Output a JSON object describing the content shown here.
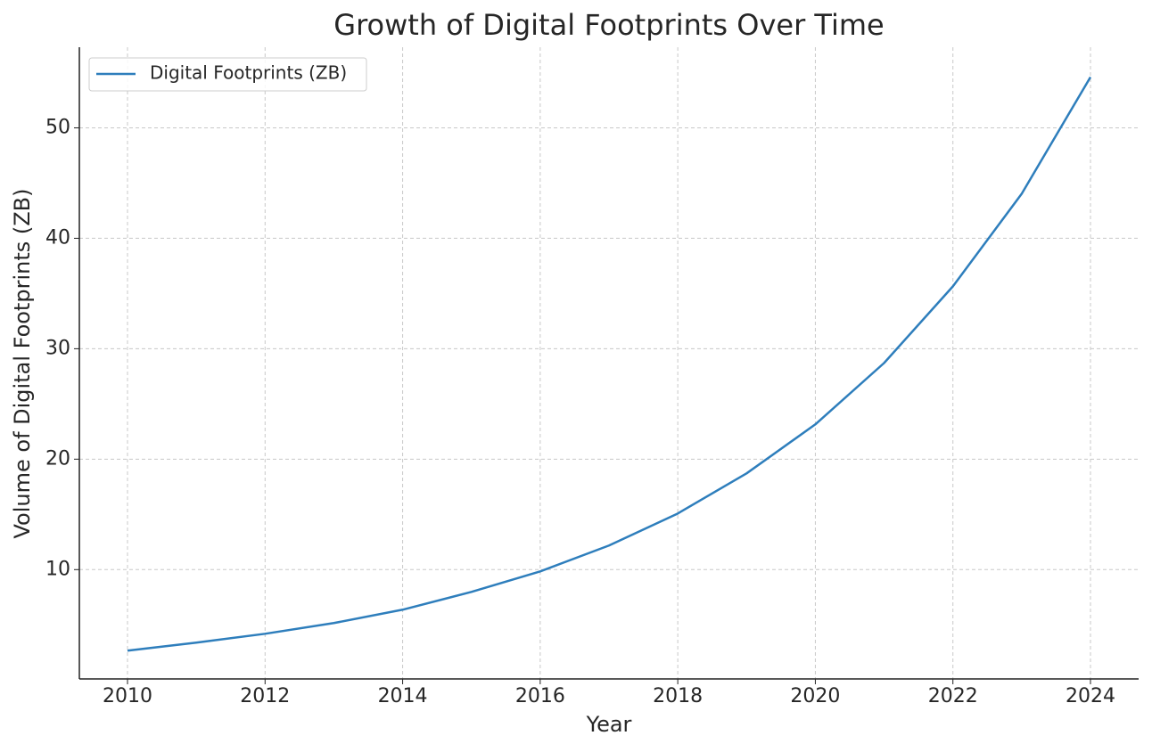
{
  "chart_data": {
    "type": "line",
    "title": "Growth of Digital Footprints Over Time",
    "x_label": "Year",
    "y_label": "Volume of Digital Footprints (ZB)",
    "x": [
      2010,
      2011,
      2012,
      2013,
      2014,
      2015,
      2016,
      2017,
      2018,
      2019,
      2020,
      2021,
      2022,
      2023,
      2024
    ],
    "series": [
      {
        "name": "Digital Footprints (ZB)",
        "color": "#2e7ebc",
        "values": [
          2.66,
          3.39,
          4.19,
          5.16,
          6.37,
          7.98,
          9.84,
          12.18,
          15.08,
          18.71,
          23.15,
          28.71,
          35.65,
          44.03,
          54.6
        ]
      }
    ],
    "xlim": [
      2009.3,
      2024.7
    ],
    "xticks": [
      2010,
      2012,
      2014,
      2016,
      2018,
      2020,
      2022,
      2024
    ],
    "ylim": [
      0.1,
      57.3
    ],
    "yticks": [
      10,
      20,
      30,
      40,
      50
    ],
    "grid": true,
    "legend": "upper-left"
  }
}
